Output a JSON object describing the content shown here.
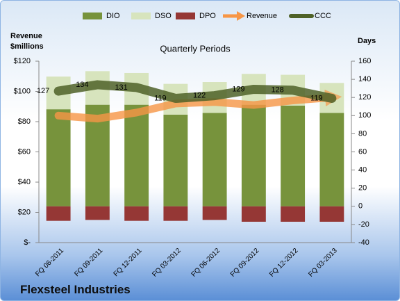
{
  "chart_data": {
    "type": "combo",
    "title": "Quarterly Periods",
    "y_label": "Revenue $millions",
    "y2_label": "Days",
    "caption": "Flexsteel Industries",
    "categories": [
      "FQ 06-2011",
      "FQ 09-2011",
      "FQ 12-2011",
      "FQ 03-2012",
      "FQ 06-2012",
      "FQ 09-2012",
      "FQ 12-2012",
      "FQ 03-2013"
    ],
    "series": [
      {
        "name": "DIO",
        "kind": "bar",
        "axis": "y2",
        "color": "#77933c",
        "values": [
          107,
          112,
          112,
          101,
          103,
          112,
          111,
          103
        ]
      },
      {
        "name": "DSO",
        "kind": "bar",
        "axis": "y2",
        "color": "#d7e4bd",
        "values": [
          36,
          37,
          35,
          34,
          34,
          34,
          34,
          33
        ]
      },
      {
        "name": "DPO",
        "kind": "bar",
        "axis": "y2",
        "color": "#953735",
        "values": [
          -16,
          -15,
          -16,
          -16,
          -15,
          -17,
          -17,
          -17
        ]
      },
      {
        "name": "Revenue",
        "kind": "arrow",
        "color": "#f79646",
        "values": [
          84,
          82,
          86,
          92,
          93,
          91,
          94,
          96
        ]
      },
      {
        "name": "CCC",
        "kind": "line",
        "axis": "y2",
        "color": "#4f6228",
        "values": [
          127,
          134,
          131,
          119,
          122,
          129,
          128,
          119
        ]
      }
    ],
    "ylim": [
      0,
      120
    ],
    "yticks": [
      {
        "value": 0,
        "label": "$-"
      },
      {
        "value": 20,
        "label": "$20"
      },
      {
        "value": 40,
        "label": "$40"
      },
      {
        "value": 60,
        "label": "$60"
      },
      {
        "value": 80,
        "label": "$80"
      },
      {
        "value": 100,
        "label": "$100"
      },
      {
        "value": 120,
        "label": "$120"
      }
    ],
    "y2lim": [
      -40,
      160
    ],
    "y2ticks": [
      -40,
      -20,
      0,
      20,
      40,
      60,
      80,
      100,
      120,
      140,
      160
    ]
  }
}
